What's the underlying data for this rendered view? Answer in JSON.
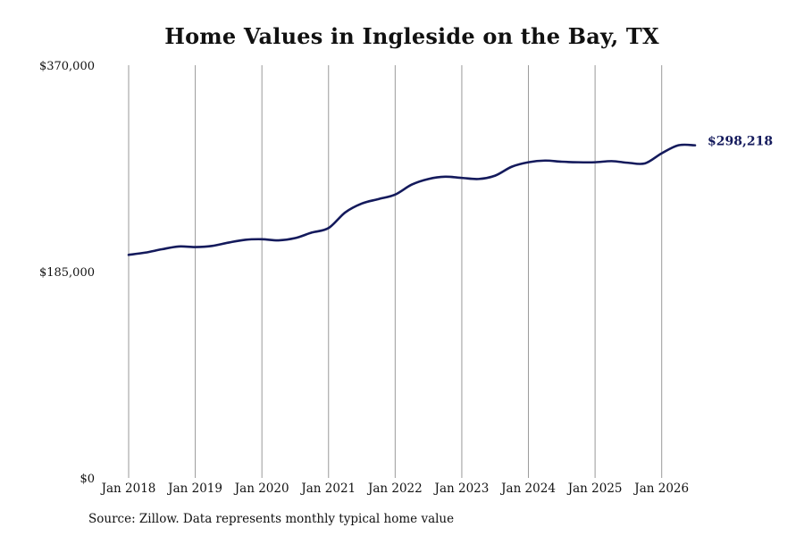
{
  "chart_data": {
    "type": "line",
    "title": "Home Values in Ingleside on the Bay, TX",
    "ylim": [
      0,
      370000
    ],
    "yticks": [
      0,
      185000,
      370000
    ],
    "ytick_labels": [
      "$0",
      "$185,000",
      "$370,000"
    ],
    "xlim": [
      2018.0,
      2026.5
    ],
    "xticks": [
      2018,
      2019,
      2020,
      2021,
      2022,
      2023,
      2024,
      2025,
      2026
    ],
    "xtick_labels": [
      "Jan 2018",
      "Jan 2019",
      "Jan 2020",
      "Jan 2021",
      "Jan 2022",
      "Jan 2023",
      "Jan 2024",
      "Jan 2025",
      "Jan 2026"
    ],
    "grid": "vertical",
    "line_color": "#141a5c",
    "end_label": "$298,218",
    "series": [
      {
        "x": [
          2018.0,
          2018.25,
          2018.5,
          2018.75,
          2019.0,
          2019.25,
          2019.5,
          2019.75,
          2020.0,
          2020.25,
          2020.5,
          2020.75,
          2021.0,
          2021.25,
          2021.5,
          2021.75,
          2022.0,
          2022.25,
          2022.5,
          2022.75,
          2023.0,
          2023.25,
          2023.5,
          2023.75,
          2024.0,
          2024.25,
          2024.5,
          2024.75,
          2025.0,
          2025.25,
          2025.5,
          2025.75,
          2026.0,
          2026.25,
          2026.5
        ],
        "y": [
          200000,
          202000,
          205000,
          207500,
          207000,
          208000,
          211000,
          213500,
          214000,
          213000,
          215000,
          220000,
          224000,
          238000,
          246000,
          250000,
          254000,
          263000,
          268000,
          270000,
          269000,
          268000,
          271000,
          279000,
          283000,
          284500,
          283500,
          283000,
          283000,
          284000,
          282500,
          282000,
          291000,
          298218,
          298218
        ]
      }
    ]
  },
  "source_note": "Source: Zillow. Data represents monthly typical home value"
}
